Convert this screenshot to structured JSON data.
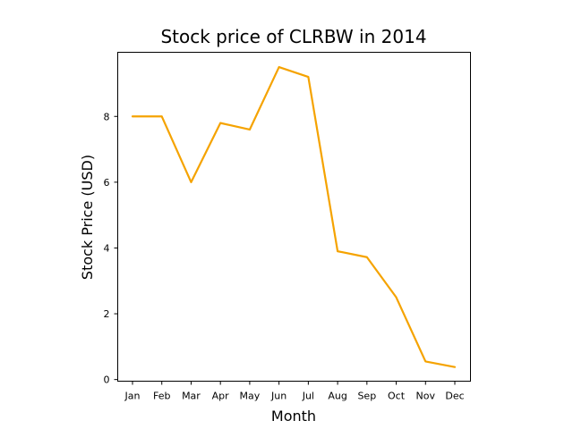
{
  "chart_data": {
    "type": "line",
    "title": "Stock price of CLRBW in 2014",
    "xlabel": "Month",
    "ylabel": "Stock Price (USD)",
    "categories": [
      "Jan",
      "Feb",
      "Mar",
      "Apr",
      "May",
      "Jun",
      "Jul",
      "Aug",
      "Sep",
      "Oct",
      "Nov",
      "Dec"
    ],
    "series": [
      {
        "values": [
          8.0,
          8.0,
          6.0,
          7.8,
          7.6,
          9.5,
          9.2,
          3.9,
          3.72,
          2.5,
          0.55,
          0.38
        ],
        "color": "#F5A300"
      }
    ],
    "ylim": [
      -0.05,
      9.95
    ],
    "yticks": [
      0,
      2,
      4,
      6,
      8
    ],
    "grid": false,
    "legend": "none"
  }
}
